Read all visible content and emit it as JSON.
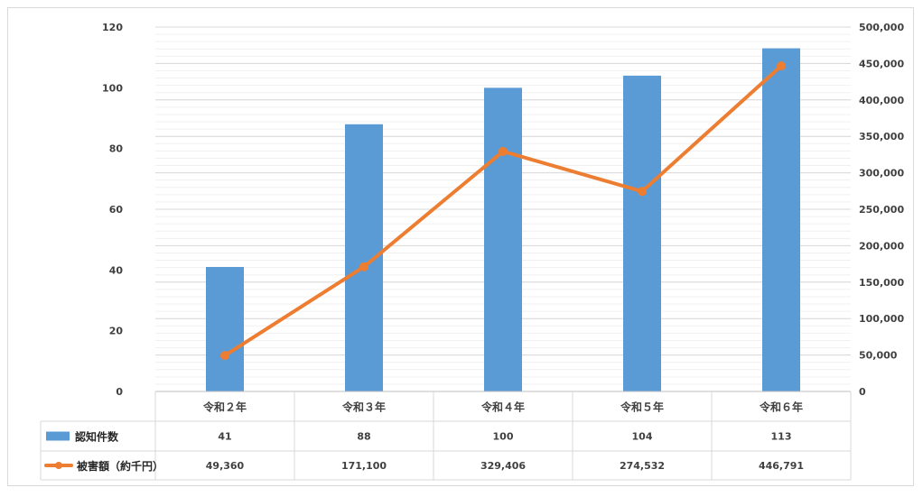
{
  "chart_data": {
    "type": "bar",
    "categories": [
      "令和２年",
      "令和３年",
      "令和４年",
      "令和５年",
      "令和６年"
    ],
    "series": [
      {
        "name": "認知件数",
        "type": "bar",
        "axis": "left",
        "color": "#5b9bd5",
        "values": [
          41,
          88,
          100,
          104,
          113
        ],
        "labels": [
          "41",
          "88",
          "100",
          "104",
          "113"
        ]
      },
      {
        "name": "被害額（約千円）",
        "type": "line",
        "axis": "right",
        "color": "#ed7d31",
        "values": [
          49360,
          171100,
          329406,
          274532,
          446791
        ],
        "labels": [
          "49,360",
          "171,100",
          "329,406",
          "274,532",
          "446,791"
        ]
      }
    ],
    "y_left": {
      "lim": [
        0,
        120
      ],
      "ticks": [
        0,
        20,
        40,
        60,
        80,
        100,
        120
      ],
      "tick_labels": [
        "0",
        "20",
        "40",
        "60",
        "80",
        "100",
        "120"
      ]
    },
    "y_right": {
      "lim": [
        0,
        500000
      ],
      "ticks": [
        0,
        50000,
        100000,
        150000,
        200000,
        250000,
        300000,
        350000,
        400000,
        450000,
        500000
      ],
      "tick_labels": [
        "0",
        "50,000",
        "100,000",
        "150,000",
        "200,000",
        "250,000",
        "300,000",
        "350,000",
        "400,000",
        "450,000",
        "500,000"
      ]
    },
    "grid": true,
    "legend": "data-table"
  }
}
